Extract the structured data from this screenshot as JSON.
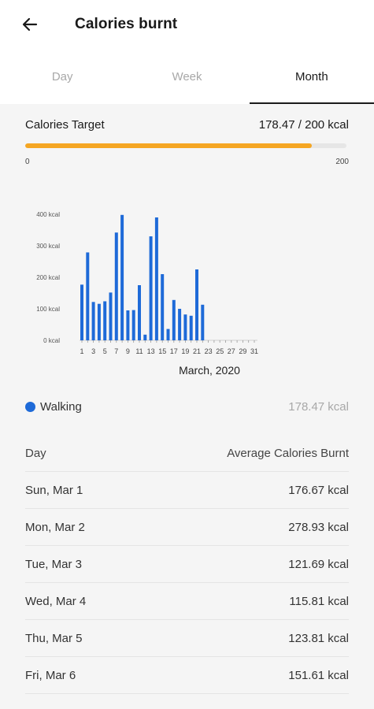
{
  "header": {
    "title": "Calories burnt",
    "back_icon": "arrow-left-icon"
  },
  "tabs": [
    {
      "label": "Day",
      "active": false
    },
    {
      "label": "Week",
      "active": false
    },
    {
      "label": "Month",
      "active": true
    }
  ],
  "target": {
    "label": "Calories Target",
    "value_text": "178.47 / 200 kcal",
    "current": 178.47,
    "max": 200,
    "min_label": "0",
    "max_label": "200",
    "color": "#f5a623"
  },
  "chart_data": {
    "type": "bar",
    "title": "",
    "xlabel": "March, 2020",
    "ylabel": "",
    "ylim": [
      0,
      400
    ],
    "y_ticks": [
      "0 kcal",
      "100 kcal",
      "200 kcal",
      "300 kcal",
      "400 kcal"
    ],
    "x_tick_labels": [
      "1",
      "3",
      "5",
      "7",
      "9",
      "11",
      "13",
      "15",
      "17",
      "19",
      "21",
      "23",
      "25",
      "27",
      "29",
      "31"
    ],
    "series_color": "#1e6ad8",
    "days": [
      1,
      2,
      3,
      4,
      5,
      6,
      7,
      8,
      9,
      10,
      11,
      12,
      13,
      14,
      15,
      16,
      17,
      18,
      19,
      20,
      21,
      22,
      23,
      24,
      25,
      26,
      27,
      28,
      29,
      30,
      31
    ],
    "values": [
      176.67,
      278.93,
      121.69,
      115.81,
      123.81,
      151.61,
      342,
      398,
      95,
      96,
      175,
      18,
      330,
      390,
      210,
      36,
      128,
      100,
      82,
      78,
      225,
      113,
      0,
      0,
      0,
      0,
      0,
      0,
      0,
      0,
      0
    ]
  },
  "legend": {
    "label": "Walking",
    "total": "178.47 kcal",
    "color": "#1e6ad8"
  },
  "table": {
    "col_day": "Day",
    "col_avg": "Average Calories Burnt",
    "rows": [
      {
        "day": "Sun, Mar 1",
        "value": "176.67 kcal"
      },
      {
        "day": "Mon, Mar 2",
        "value": "278.93 kcal"
      },
      {
        "day": "Tue, Mar 3",
        "value": "121.69 kcal"
      },
      {
        "day": "Wed, Mar 4",
        "value": "115.81 kcal"
      },
      {
        "day": "Thu, Mar 5",
        "value": "123.81 kcal"
      },
      {
        "day": "Fri, Mar 6",
        "value": "151.61 kcal"
      }
    ]
  }
}
